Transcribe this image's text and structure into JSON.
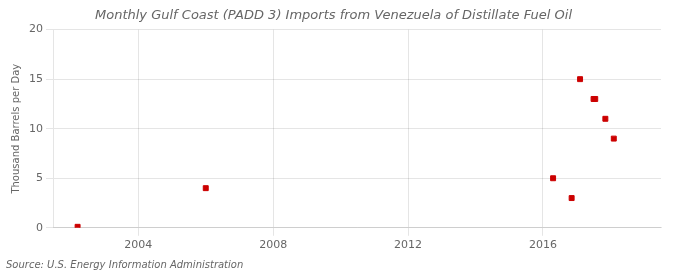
{
  "chart_data": {
    "type": "scatter",
    "title": "Monthly Gulf Coast (PADD 3) Imports from Venezuela of Distillate Fuel Oil",
    "ylabel": "Thousand Barrels per Day",
    "source": "Source: U.S. Energy Information Administration",
    "x": [
      2002.2,
      2006.0,
      2016.3,
      2016.85,
      2017.1,
      2017.5,
      2017.55,
      2017.85,
      2018.1
    ],
    "values": [
      0.1,
      4.0,
      5.0,
      3.0,
      15.0,
      13.0,
      13.0,
      11.0,
      9.0
    ],
    "color": "#cc0000",
    "marker": "square",
    "xlim": [
      2001.5,
      2019.5
    ],
    "ylim": [
      0,
      20
    ],
    "xticks": [
      2004,
      2008,
      2012,
      2016
    ],
    "yticks": [
      0,
      5,
      10,
      15,
      20
    ],
    "grid": true
  }
}
